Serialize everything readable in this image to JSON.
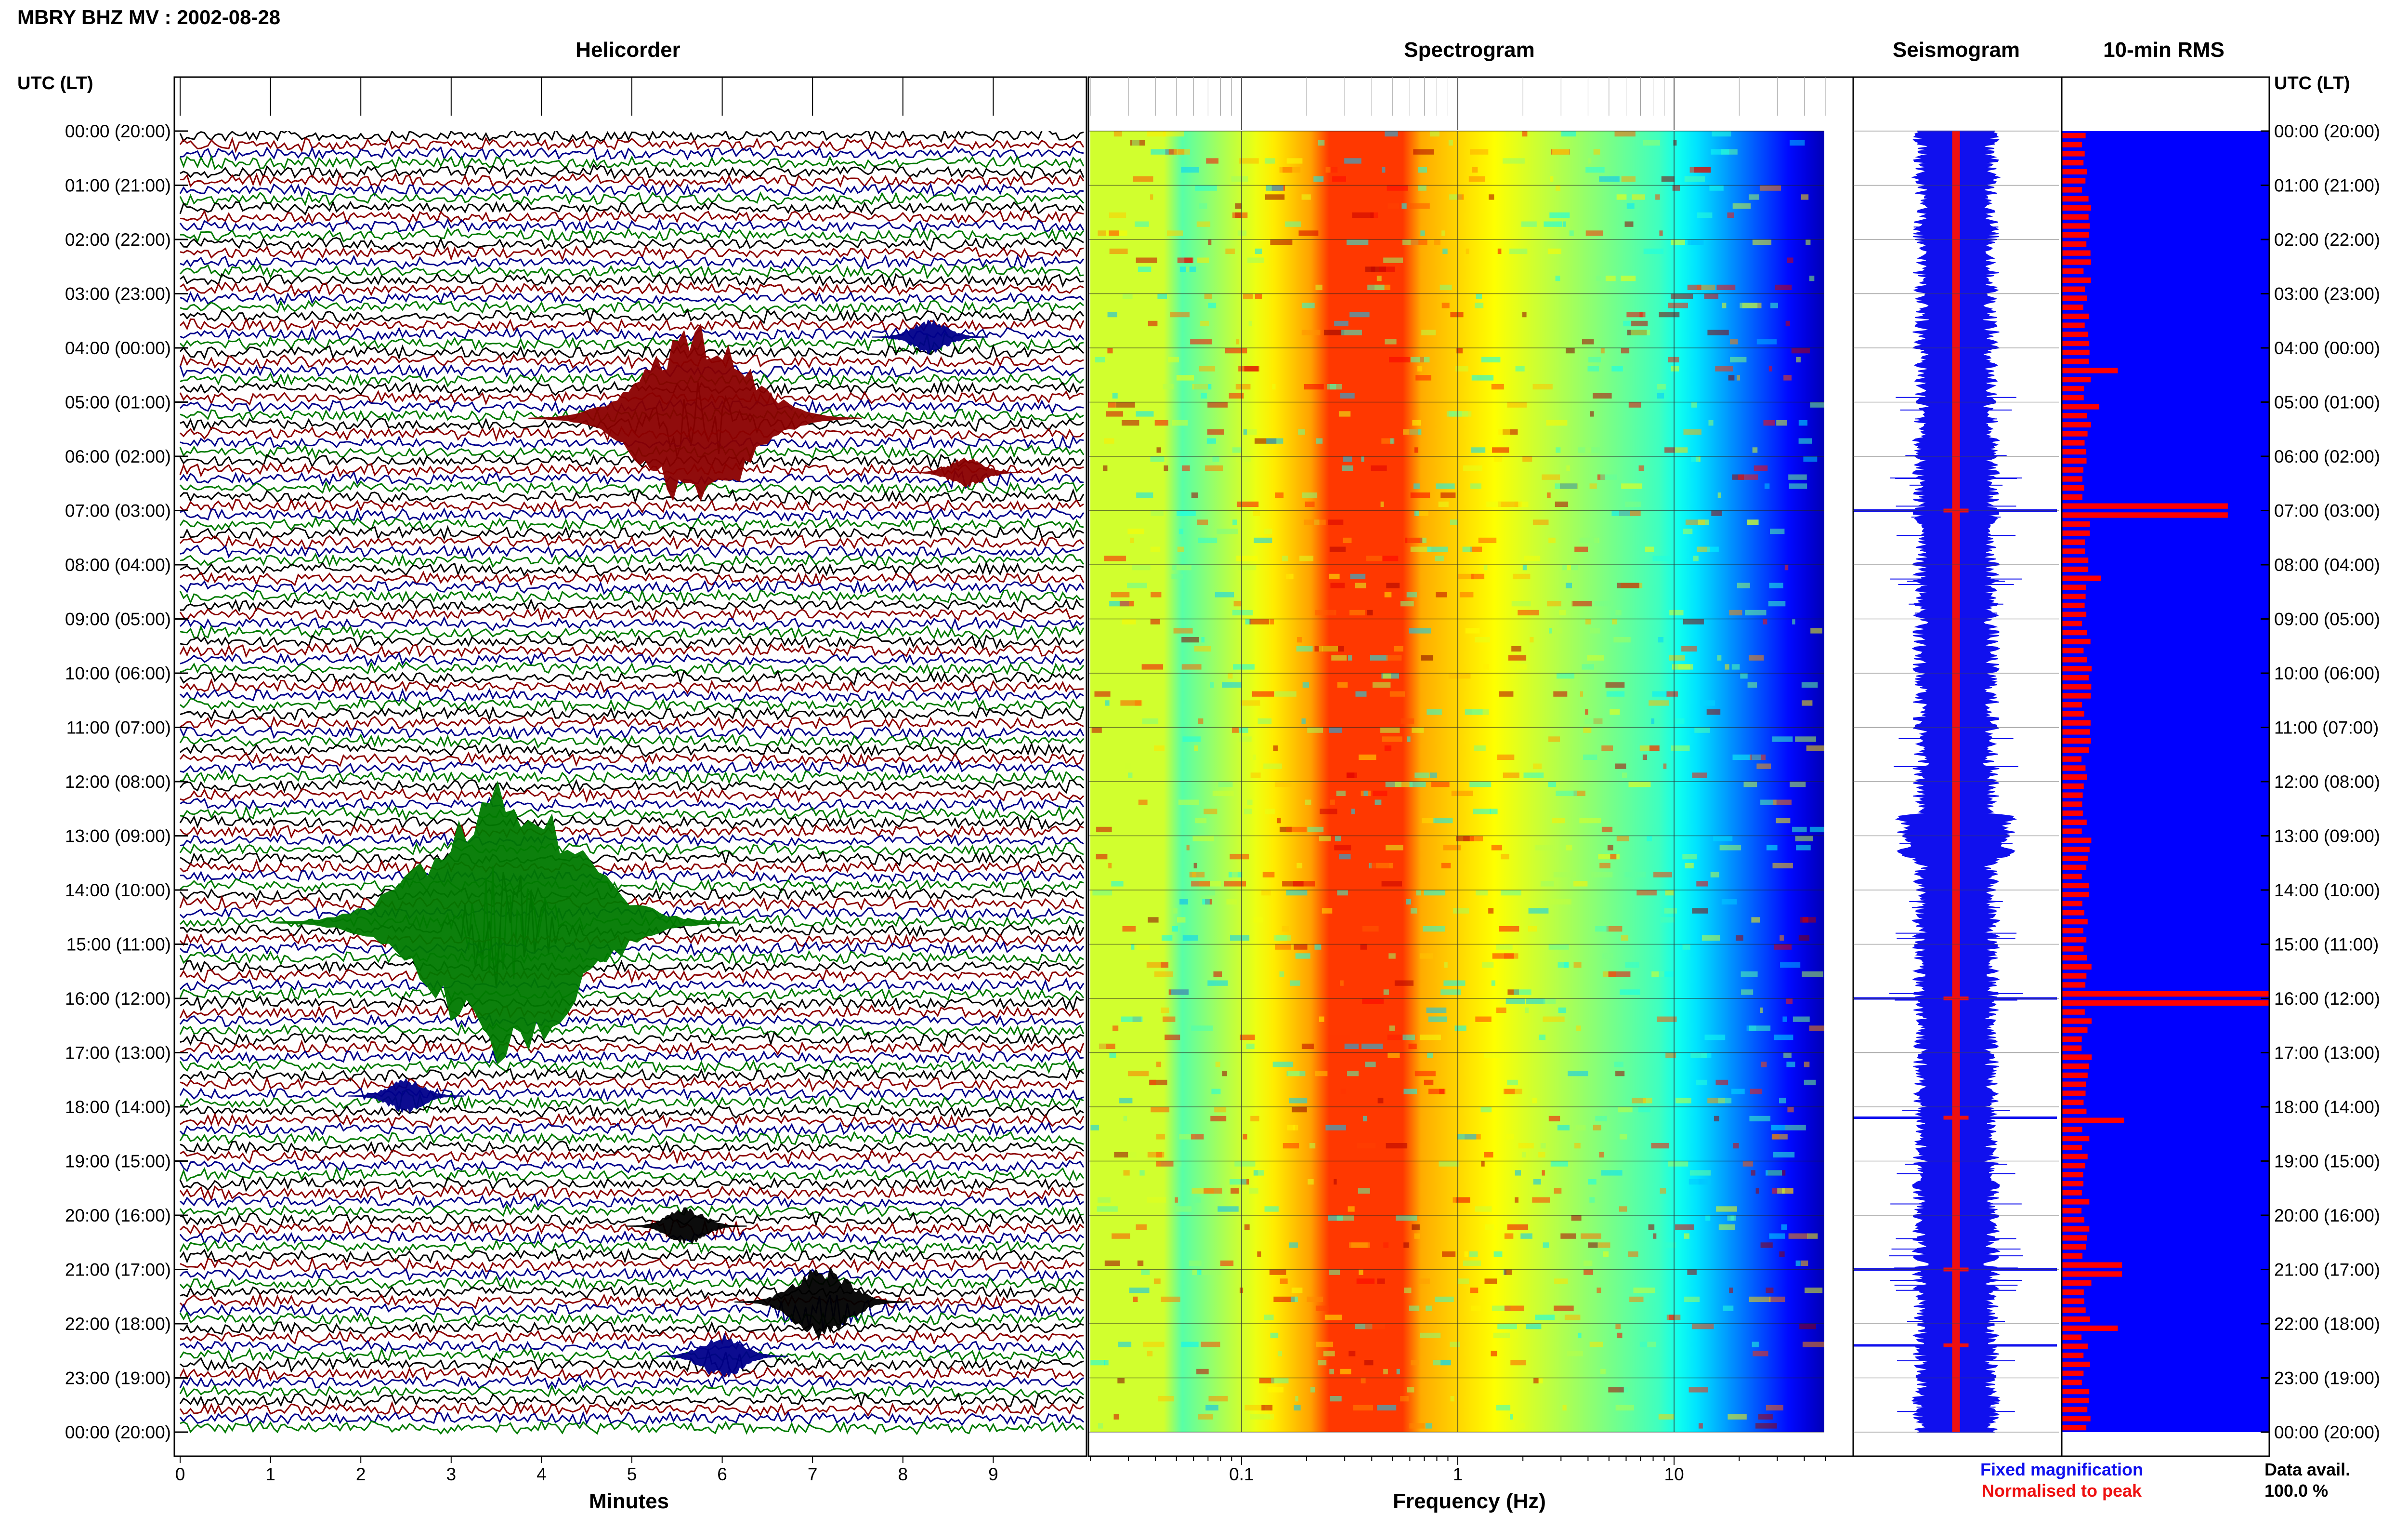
{
  "header": {
    "station_title": "MBRY BHZ MV : 2002-08-28"
  },
  "panels": {
    "helicorder_title": "Helicorder",
    "spectrogram_title": "Spectrogram",
    "seismogram_title": "Seismogram",
    "rms_title": "10-min RMS"
  },
  "time_axis": {
    "label_left": "UTC (LT)",
    "label_right": "UTC (LT)",
    "ticks": [
      "00:00 (20:00)",
      "01:00 (21:00)",
      "02:00 (22:00)",
      "03:00 (23:00)",
      "04:00 (00:00)",
      "05:00 (01:00)",
      "06:00 (02:00)",
      "07:00 (03:00)",
      "08:00 (04:00)",
      "09:00 (05:00)",
      "10:00 (06:00)",
      "11:00 (07:00)",
      "12:00 (08:00)",
      "13:00 (09:00)",
      "14:00 (10:00)",
      "15:00 (11:00)",
      "16:00 (12:00)",
      "17:00 (13:00)",
      "18:00 (14:00)",
      "19:00 (15:00)",
      "20:00 (16:00)",
      "21:00 (17:00)",
      "22:00 (18:00)",
      "23:00 (19:00)",
      "00:00 (20:00)"
    ]
  },
  "legend": {
    "fixed_label": "Fixed magnification",
    "fixed_color": "#1010ee",
    "normalised_label": "Normalised to peak",
    "normalised_color": "#ee1010",
    "data_avail_label": "Data avail.",
    "data_avail_value": "100.0 %"
  },
  "colors": {
    "trace_cycle": [
      "#000000",
      "#8b0000",
      "#00008b",
      "#007a00"
    ],
    "rms_fill": "#0000ff",
    "rms_bar": "#ff0000"
  },
  "chart_data": [
    {
      "type": "line",
      "name": "helicorder",
      "xlabel": "Minutes",
      "x_ticks": [
        "0",
        "1",
        "2",
        "3",
        "4",
        "5",
        "6",
        "7",
        "8",
        "9"
      ],
      "xlim": [
        0,
        10
      ],
      "rows": 144,
      "events": [
        {
          "hour": 5.3,
          "minute": 5.7,
          "amplitude_rows": 5.0,
          "color": "#8b0000"
        },
        {
          "hour": 14.6,
          "minute": 3.6,
          "amplitude_rows": 7.5,
          "color": "#007a00"
        },
        {
          "hour": 21.6,
          "minute": 7.1,
          "amplitude_rows": 2.0,
          "color": "#000000"
        },
        {
          "hour": 6.3,
          "minute": 8.7,
          "amplitude_rows": 0.8,
          "color": "#8b0000"
        },
        {
          "hour": 3.8,
          "minute": 8.3,
          "amplitude_rows": 0.9,
          "color": "#00008b"
        },
        {
          "hour": 17.8,
          "minute": 2.5,
          "amplitude_rows": 0.9,
          "color": "#00008b"
        },
        {
          "hour": 20.2,
          "minute": 5.6,
          "amplitude_rows": 1.0,
          "color": "#000000"
        },
        {
          "hour": 22.6,
          "minute": 6.0,
          "amplitude_rows": 1.2,
          "color": "#00008b"
        }
      ]
    },
    {
      "type": "heatmap",
      "name": "spectrogram",
      "xlabel": "Frequency (Hz)",
      "x_scale": "log",
      "x_ticks": [
        "0.1",
        "1",
        "10"
      ],
      "xlim": [
        0.02,
        50
      ],
      "peak_band_hz": [
        0.25,
        0.6
      ],
      "colormap": "jet"
    },
    {
      "type": "line",
      "name": "seismogram",
      "spikes_hour": [
        7.0,
        16.0,
        18.2,
        21.0,
        22.4
      ]
    },
    {
      "type": "bar",
      "name": "rms_10min",
      "bins": 144,
      "baseline": 0.12,
      "peaks": [
        {
          "hour": 7.0,
          "value": 0.8
        },
        {
          "hour": 16.0,
          "value": 1.0
        },
        {
          "hour": 18.2,
          "value": 0.3
        },
        {
          "hour": 21.0,
          "value": 0.29
        },
        {
          "hour": 22.1,
          "value": 0.27
        },
        {
          "hour": 4.4,
          "value": 0.27
        },
        {
          "hour": 5.1,
          "value": 0.18
        },
        {
          "hour": 8.3,
          "value": 0.19
        }
      ]
    }
  ]
}
